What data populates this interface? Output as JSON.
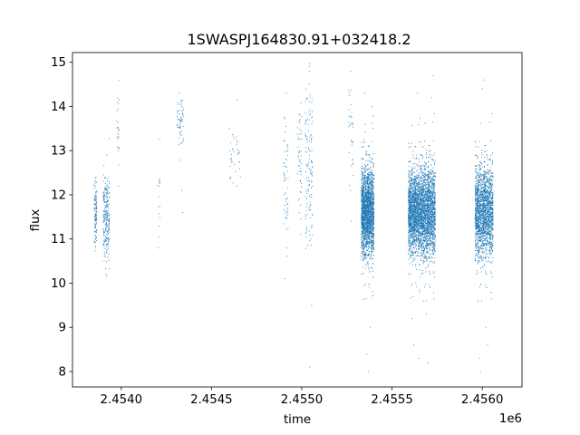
{
  "chart_data": {
    "type": "scatter",
    "title": "1SWASPJ164830.91+032418.2",
    "xlabel": "time",
    "ylabel": "flux",
    "x_offset_label": "1e6",
    "xlim": [
      2453730,
      2456220
    ],
    "ylim": [
      7.65,
      15.22
    ],
    "x_ticks": [
      2.454,
      2.4545,
      2.455,
      2.4555,
      2.456
    ],
    "x_tick_labels": [
      "2.4540",
      "2.4545",
      "2.4550",
      "2.4555",
      "2.4560"
    ],
    "y_ticks": [
      8,
      9,
      10,
      11,
      12,
      13,
      14,
      15
    ],
    "y_tick_labels": [
      "8",
      "9",
      "10",
      "11",
      "12",
      "13",
      "14",
      "15"
    ],
    "grid": false,
    "marker_color": "#1f77b4",
    "series": [
      {
        "name": "",
        "segments": [
          {
            "x_range": [
              2453850,
              2453865
            ],
            "y_center": 11.6,
            "y_spread": 0.55,
            "n": 120,
            "outliers": [
              [
                2453855,
                10.8
              ],
              [
                2453860,
                12.4
              ]
            ]
          },
          {
            "x_range": [
              2453900,
              2453935
            ],
            "y_center": 11.5,
            "y_spread": 0.75,
            "n": 260,
            "outliers": [
              [
                2453915,
                10.2
              ],
              [
                2453920,
                12.9
              ],
              [
                2453905,
                10.5
              ]
            ]
          },
          {
            "x_range": [
              2453975,
              2453990
            ],
            "y_center": 13.3,
            "y_spread": 0.6,
            "n": 25,
            "outliers": [
              [
                2453980,
                14.1
              ],
              [
                2453985,
                12.2
              ]
            ]
          },
          {
            "x_range": [
              2454200,
              2454215
            ],
            "y_center": 11.9,
            "y_spread": 0.7,
            "n": 15,
            "outliers": [
              [
                2454205,
                10.8
              ]
            ]
          },
          {
            "x_range": [
              2454310,
              2454345
            ],
            "y_center": 13.6,
            "y_spread": 0.55,
            "n": 60,
            "outliers": [
              [
                2454320,
                14.3
              ],
              [
                2454340,
                11.6
              ],
              [
                2454335,
                12.1
              ]
            ]
          },
          {
            "x_range": [
              2454600,
              2454660
            ],
            "y_center": 12.9,
            "y_spread": 0.55,
            "n": 35,
            "outliers": [
              [
                2454640,
                12.2
              ],
              [
                2454660,
                12.4
              ],
              [
                2454600,
                13.5
              ]
            ]
          },
          {
            "x_range": [
              2454900,
              2454925
            ],
            "y_center": 12.3,
            "y_spread": 1.2,
            "n": 55,
            "outliers": [
              [
                2454905,
                10.1
              ],
              [
                2454915,
                14.3
              ],
              [
                2454920,
                11.6
              ]
            ]
          },
          {
            "x_range": [
              2454975,
              2455000
            ],
            "y_center": 12.9,
            "y_spread": 1.2,
            "n": 50,
            "outliers": [
              [
                2454990,
                13.7
              ],
              [
                2454995,
                11.1
              ]
            ]
          },
          {
            "x_range": [
              2455020,
              2455060
            ],
            "y_center": 12.8,
            "y_spread": 1.6,
            "n": 140,
            "outliers": [
              [
                2455040,
                14.9
              ],
              [
                2455045,
                8.1
              ],
              [
                2455055,
                9.5
              ],
              [
                2455050,
                11.0
              ]
            ]
          },
          {
            "x_range": [
              2455260,
              2455285
            ],
            "y_center": 13.4,
            "y_spread": 0.9,
            "n": 35,
            "outliers": [
              [
                2455270,
                14.8
              ],
              [
                2455275,
                11.4
              ]
            ]
          },
          {
            "x_range": [
              2455330,
              2455400
            ],
            "y_center": 11.6,
            "y_spread": 0.8,
            "n": 2600,
            "outliers": [
              [
                2455370,
                8.0
              ],
              [
                2455360,
                8.4
              ],
              [
                2455380,
                9.0
              ],
              [
                2455350,
                14.3
              ],
              [
                2455390,
                14.0
              ]
            ]
          },
          {
            "x_range": [
              2455590,
              2455660
            ],
            "y_center": 11.6,
            "y_spread": 0.75,
            "n": 1700,
            "outliers": [
              [
                2455620,
                8.6
              ],
              [
                2455640,
                14.3
              ],
              [
                2455610,
                9.2
              ],
              [
                2455650,
                8.3
              ]
            ]
          },
          {
            "x_range": [
              2455660,
              2455740
            ],
            "y_center": 11.6,
            "y_spread": 0.85,
            "n": 1900,
            "outliers": [
              [
                2455700,
                8.2
              ],
              [
                2455730,
                14.7
              ],
              [
                2455690,
                9.3
              ],
              [
                2455720,
                14.2
              ]
            ]
          },
          {
            "x_range": [
              2455960,
              2456060
            ],
            "y_center": 11.6,
            "y_spread": 0.85,
            "n": 2300,
            "outliers": [
              [
                2455985,
                8.3
              ],
              [
                2455990,
                8.0
              ],
              [
                2456010,
                14.6
              ],
              [
                2456020,
                9.0
              ],
              [
                2456000,
                14.4
              ],
              [
                2456030,
                8.6
              ]
            ]
          }
        ]
      }
    ]
  }
}
